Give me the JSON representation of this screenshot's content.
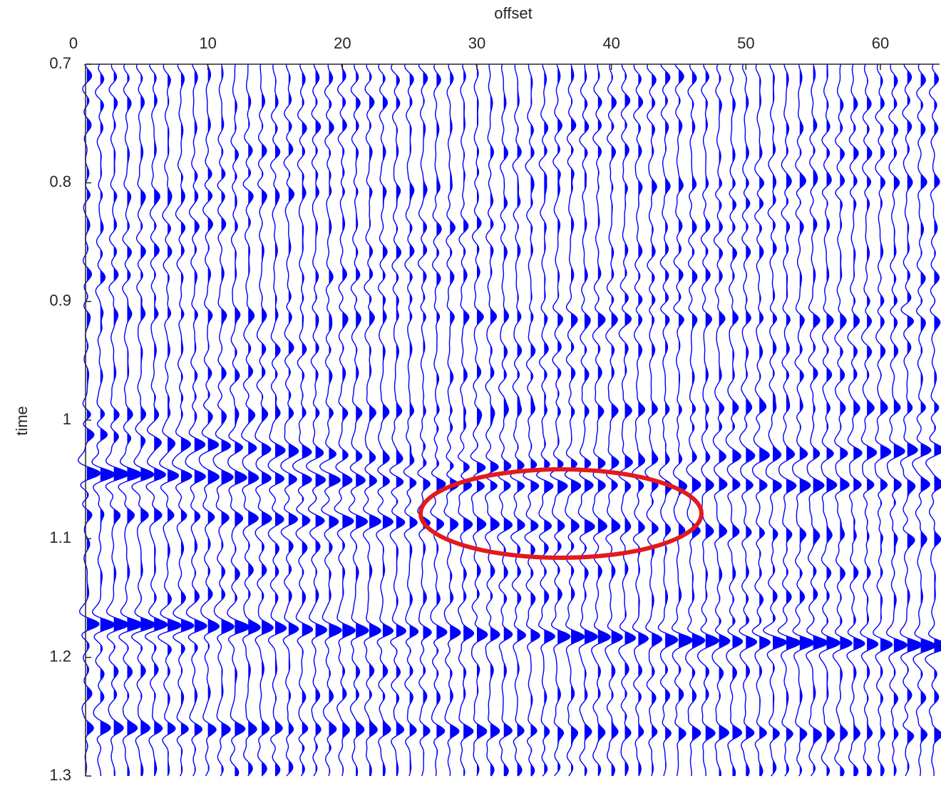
{
  "chart_data": {
    "type": "wiggle",
    "xlabel": "offset",
    "ylabel": "time",
    "xlim": [
      0,
      64.4
    ],
    "ylim": [
      0.7,
      1.3
    ],
    "y_inverted": true,
    "x_axis_position": "top",
    "xticks": [
      0,
      10,
      20,
      30,
      40,
      50,
      60
    ],
    "yticks": [
      0.7,
      0.8,
      0.9,
      1,
      1.1,
      1.2,
      1.3
    ],
    "color": "#0000ff",
    "traces": [
      1,
      2,
      3,
      4,
      5,
      6,
      7,
      8,
      9,
      10,
      11,
      12,
      13,
      14,
      15,
      16,
      17,
      18,
      19,
      20,
      21,
      22,
      23,
      24,
      25,
      26,
      27,
      28,
      29,
      30,
      31,
      32,
      33,
      34,
      35,
      36,
      37,
      38,
      39,
      40,
      41,
      42,
      43,
      44,
      45,
      46,
      47,
      48,
      49,
      50,
      51,
      52,
      53,
      54,
      55,
      56,
      57,
      58,
      59,
      60,
      61,
      62,
      63,
      64
    ],
    "series": [
      {
        "x": [
          1,
          64
        ],
        "values": [
          0.81,
          0.8
        ],
        "amplitude": 0.4
      },
      {
        "x": [
          1,
          64
        ],
        "values": [
          0.91,
          0.915
        ],
        "amplitude": 0.5
      },
      {
        "x": [
          1,
          64
        ],
        "values": [
          0.995,
          0.99
        ],
        "amplitude": 0.6
      },
      {
        "x": [
          1,
          30,
          64
        ],
        "values": [
          1.012,
          1.04,
          1.025
        ],
        "amplitude": 0.8
      },
      {
        "x": [
          1,
          30,
          64
        ],
        "values": [
          1.045,
          1.055,
          1.055
        ],
        "amplitude": 1.0
      },
      {
        "x": [
          1,
          64
        ],
        "values": [
          1.078,
          1.1
        ],
        "amplitude": 0.7
      },
      {
        "x": [
          1,
          64
        ],
        "values": [
          1.172,
          1.19
        ],
        "amplitude": 1.2
      },
      {
        "x": [
          1,
          64
        ],
        "values": [
          1.26,
          1.265
        ],
        "amplitude": 0.9
      }
    ]
  }
}
